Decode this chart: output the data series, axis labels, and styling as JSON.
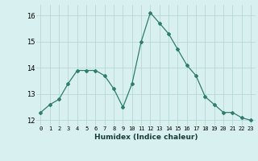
{
  "x": [
    0,
    1,
    2,
    3,
    4,
    5,
    6,
    7,
    8,
    9,
    10,
    11,
    12,
    13,
    14,
    15,
    16,
    17,
    18,
    19,
    20,
    21,
    22,
    23
  ],
  "y": [
    12.3,
    12.6,
    12.8,
    13.4,
    13.9,
    13.9,
    13.9,
    13.7,
    13.2,
    12.5,
    13.4,
    15.0,
    16.1,
    15.7,
    15.3,
    14.7,
    14.1,
    13.7,
    12.9,
    12.6,
    12.3,
    12.3,
    12.1,
    12.0
  ],
  "line_color": "#2e7d6e",
  "marker": "D",
  "marker_size": 2,
  "bg_color": "#d9f0f0",
  "grid_color": "#b8d8d8",
  "xlabel": "Humidex (Indice chaleur)",
  "ylim": [
    11.8,
    16.4
  ],
  "xlim": [
    -0.5,
    23.5
  ],
  "yticks": [
    12,
    13,
    14,
    15,
    16
  ],
  "xticks": [
    0,
    1,
    2,
    3,
    4,
    5,
    6,
    7,
    8,
    9,
    10,
    11,
    12,
    13,
    14,
    15,
    16,
    17,
    18,
    19,
    20,
    21,
    22,
    23
  ]
}
